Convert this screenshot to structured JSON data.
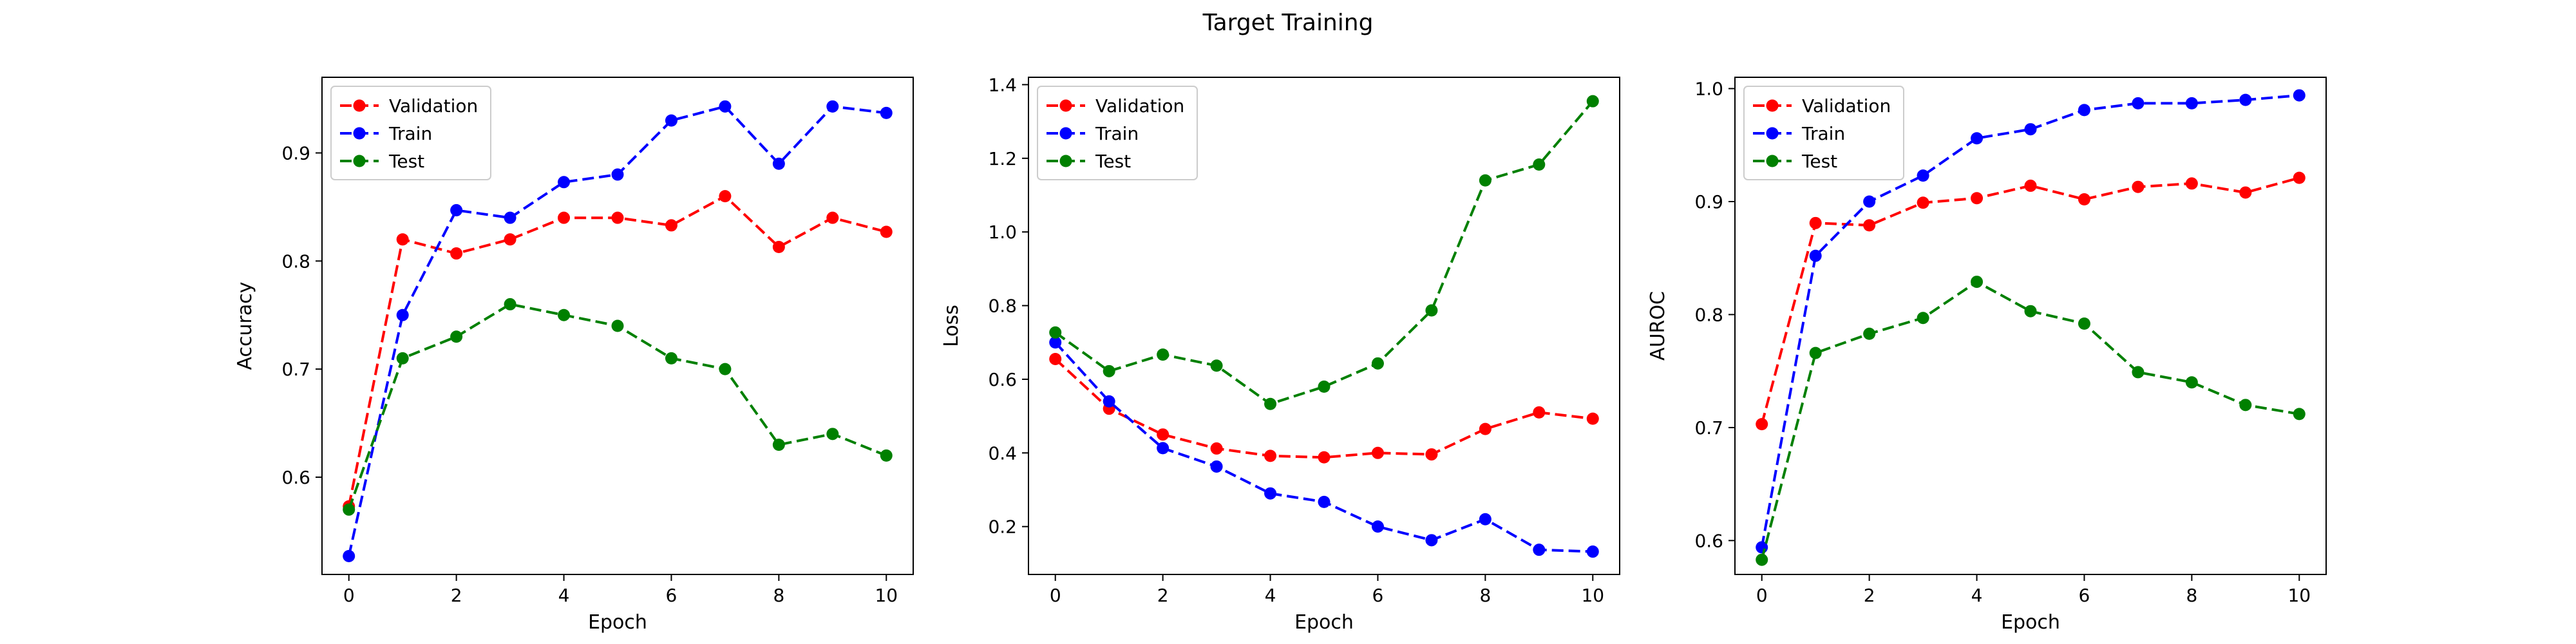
{
  "figure": {
    "title": "Target Training"
  },
  "chart_data": [
    {
      "type": "line",
      "xlabel": "Epoch",
      "ylabel": "Accuracy",
      "xlim": [
        -0.5,
        10.5
      ],
      "ylim": [
        0.51,
        0.97
      ],
      "xticks": [
        0,
        2,
        4,
        6,
        8,
        10
      ],
      "yticks": [
        0.6,
        0.7,
        0.8,
        0.9
      ],
      "grid": false,
      "legend": "top-left",
      "x": [
        0,
        1,
        2,
        3,
        4,
        5,
        6,
        7,
        8,
        9,
        10
      ],
      "series": [
        {
          "name": "Validation",
          "color": "#ff0000",
          "values": [
            0.573,
            0.82,
            0.807,
            0.82,
            0.84,
            0.84,
            0.833,
            0.86,
            0.813,
            0.84,
            0.827
          ]
        },
        {
          "name": "Train",
          "color": "#0000ff",
          "values": [
            0.527,
            0.75,
            0.847,
            0.84,
            0.873,
            0.88,
            0.93,
            0.943,
            0.89,
            0.943,
            0.937
          ]
        },
        {
          "name": "Test",
          "color": "#008000",
          "values": [
            0.57,
            0.71,
            0.73,
            0.76,
            0.75,
            0.74,
            0.71,
            0.7,
            0.63,
            0.64,
            0.62
          ]
        }
      ]
    },
    {
      "type": "line",
      "xlabel": "Epoch",
      "ylabel": "Loss",
      "xlim": [
        -0.5,
        10.5
      ],
      "ylim": [
        0.07,
        1.42
      ],
      "xticks": [
        0,
        2,
        4,
        6,
        8,
        10
      ],
      "yticks": [
        0.2,
        0.4,
        0.6,
        0.8,
        1.0,
        1.2,
        1.4
      ],
      "grid": false,
      "legend": "top-left",
      "x": [
        0,
        1,
        2,
        3,
        4,
        5,
        6,
        7,
        8,
        9,
        10
      ],
      "series": [
        {
          "name": "Validation",
          "color": "#ff0000",
          "values": [
            0.655,
            0.52,
            0.45,
            0.412,
            0.392,
            0.388,
            0.4,
            0.396,
            0.465,
            0.51,
            0.493
          ]
        },
        {
          "name": "Train",
          "color": "#0000ff",
          "values": [
            0.7,
            0.54,
            0.413,
            0.363,
            0.29,
            0.267,
            0.2,
            0.163,
            0.22,
            0.137,
            0.132
          ]
        },
        {
          "name": "Test",
          "color": "#008000",
          "values": [
            0.727,
            0.622,
            0.667,
            0.637,
            0.533,
            0.58,
            0.643,
            0.787,
            1.14,
            1.183,
            1.355
          ]
        }
      ]
    },
    {
      "type": "line",
      "xlabel": "Epoch",
      "ylabel": "AUROC",
      "xlim": [
        -0.5,
        10.5
      ],
      "ylim": [
        0.57,
        1.01
      ],
      "xticks": [
        0,
        2,
        4,
        6,
        8,
        10
      ],
      "yticks": [
        0.6,
        0.7,
        0.8,
        0.9,
        1.0
      ],
      "grid": false,
      "legend": "top-left",
      "x": [
        0,
        1,
        2,
        3,
        4,
        5,
        6,
        7,
        8,
        9,
        10
      ],
      "series": [
        {
          "name": "Validation",
          "color": "#ff0000",
          "values": [
            0.703,
            0.881,
            0.879,
            0.899,
            0.903,
            0.914,
            0.902,
            0.913,
            0.916,
            0.908,
            0.921
          ]
        },
        {
          "name": "Train",
          "color": "#0000ff",
          "values": [
            0.594,
            0.852,
            0.9,
            0.923,
            0.956,
            0.964,
            0.981,
            0.987,
            0.987,
            0.99,
            0.994
          ]
        },
        {
          "name": "Test",
          "color": "#008000",
          "values": [
            0.583,
            0.766,
            0.783,
            0.797,
            0.829,
            0.803,
            0.792,
            0.749,
            0.74,
            0.72,
            0.712
          ]
        }
      ]
    }
  ]
}
